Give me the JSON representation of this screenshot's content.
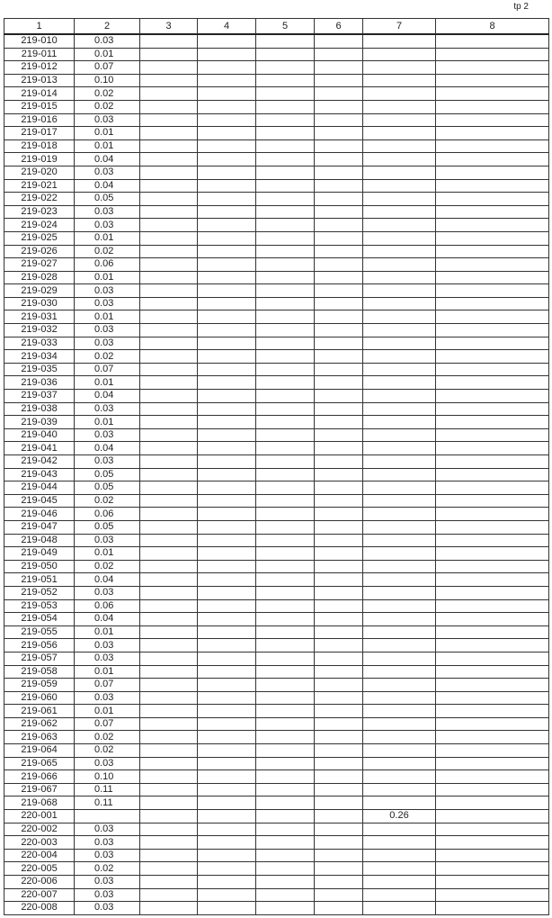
{
  "header": {
    "page": "tp 2"
  },
  "table": {
    "columns": [
      "1",
      "2",
      "3",
      "4",
      "5",
      "6",
      "7",
      "8"
    ],
    "rows": [
      {
        "c1": "219-010",
        "c2": "0.03"
      },
      {
        "c1": "219-011",
        "c2": "0.01"
      },
      {
        "c1": "219-012",
        "c2": "0.07"
      },
      {
        "c1": "219-013",
        "c2": "0.10"
      },
      {
        "c1": "219-014",
        "c2": "0.02"
      },
      {
        "c1": "219-015",
        "c2": "0.02"
      },
      {
        "c1": "219-016",
        "c2": "0.03"
      },
      {
        "c1": "219-017",
        "c2": "0.01"
      },
      {
        "c1": "219-018",
        "c2": "0.01"
      },
      {
        "c1": "219-019",
        "c2": "0.04"
      },
      {
        "c1": "219-020",
        "c2": "0.03"
      },
      {
        "c1": "219-021",
        "c2": "0.04"
      },
      {
        "c1": "219-022",
        "c2": "0.05"
      },
      {
        "c1": "219-023",
        "c2": "0.03"
      },
      {
        "c1": "219-024",
        "c2": "0.03"
      },
      {
        "c1": "219-025",
        "c2": "0.01"
      },
      {
        "c1": "219-026",
        "c2": "0.02"
      },
      {
        "c1": "219-027",
        "c2": "0.06"
      },
      {
        "c1": "219-028",
        "c2": "0.01"
      },
      {
        "c1": "219-029",
        "c2": "0.03"
      },
      {
        "c1": "219-030",
        "c2": "0.03"
      },
      {
        "c1": "219-031",
        "c2": "0.01"
      },
      {
        "c1": "219-032",
        "c2": "0.03"
      },
      {
        "c1": "219-033",
        "c2": "0.03"
      },
      {
        "c1": "219-034",
        "c2": "0.02"
      },
      {
        "c1": "219-035",
        "c2": "0.07"
      },
      {
        "c1": "219-036",
        "c2": "0.01"
      },
      {
        "c1": "219-037",
        "c2": "0.04"
      },
      {
        "c1": "219-038",
        "c2": "0.03"
      },
      {
        "c1": "219-039",
        "c2": "0.01"
      },
      {
        "c1": "219-040",
        "c2": "0.03"
      },
      {
        "c1": "219-041",
        "c2": "0.04"
      },
      {
        "c1": "219-042",
        "c2": "0.03"
      },
      {
        "c1": "219-043",
        "c2": "0.05"
      },
      {
        "c1": "219-044",
        "c2": "0.05"
      },
      {
        "c1": "219-045",
        "c2": "0.02"
      },
      {
        "c1": "219-046",
        "c2": "0.06"
      },
      {
        "c1": "219-047",
        "c2": "0.05"
      },
      {
        "c1": "219-048",
        "c2": "0.03"
      },
      {
        "c1": "219-049",
        "c2": "0.01"
      },
      {
        "c1": "219-050",
        "c2": "0.02"
      },
      {
        "c1": "219-051",
        "c2": "0.04"
      },
      {
        "c1": "219-052",
        "c2": "0.03"
      },
      {
        "c1": "219-053",
        "c2": "0.06"
      },
      {
        "c1": "219-054",
        "c2": "0.04"
      },
      {
        "c1": "219-055",
        "c2": "0.01"
      },
      {
        "c1": "219-056",
        "c2": "0.03"
      },
      {
        "c1": "219-057",
        "c2": "0.03"
      },
      {
        "c1": "219-058",
        "c2": "0.01"
      },
      {
        "c1": "219-059",
        "c2": "0.07"
      },
      {
        "c1": "219-060",
        "c2": "0.03"
      },
      {
        "c1": "219-061",
        "c2": "0.01"
      },
      {
        "c1": "219-062",
        "c2": "0.07"
      },
      {
        "c1": "219-063",
        "c2": "0.02"
      },
      {
        "c1": "219-064",
        "c2": "0.02"
      },
      {
        "c1": "219-065",
        "c2": "0.03"
      },
      {
        "c1": "219-066",
        "c2": "0.10"
      },
      {
        "c1": "219-067",
        "c2": "0.11"
      },
      {
        "c1": "219-068",
        "c2": "0.11"
      },
      {
        "c1": "220-001",
        "c7": "0.26"
      },
      {
        "c1": "220-002",
        "c2": "0.03"
      },
      {
        "c1": "220-003",
        "c2": "0.03"
      },
      {
        "c1": "220-004",
        "c2": "0.03"
      },
      {
        "c1": "220-005",
        "c2": "0.02"
      },
      {
        "c1": "220-006",
        "c2": "0.03"
      },
      {
        "c1": "220-007",
        "c2": "0.03"
      },
      {
        "c1": "220-008",
        "c2": "0.03"
      }
    ]
  }
}
